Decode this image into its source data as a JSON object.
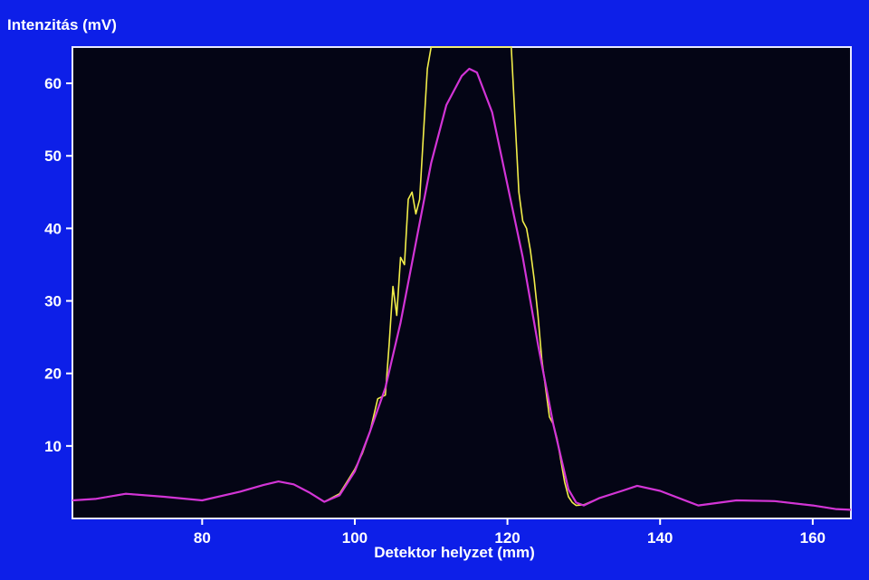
{
  "chart_data": {
    "type": "line",
    "ylabel": "Intenzitás (mV)",
    "xlabel": "Detektor helyzet (mm)",
    "xlim": [
      63,
      165
    ],
    "ylim": [
      0,
      65
    ],
    "x_ticks": [
      80,
      100,
      120,
      140,
      160
    ],
    "y_ticks": [
      10,
      20,
      30,
      40,
      50,
      60
    ],
    "grid": false,
    "colors": {
      "background": "#0d1fe8",
      "plot_area": "#040515",
      "frame": "#e8e8ff",
      "measured": "#f2ee4a",
      "model": "#d234d6",
      "text": "#ffffff"
    },
    "series": [
      {
        "style": "measured",
        "x": [
          63,
          66,
          70,
          75,
          80,
          85,
          88,
          90,
          92,
          94,
          96,
          98,
          100,
          101,
          102,
          103,
          104,
          104.5,
          105,
          105.5,
          106,
          106.5,
          107,
          107.5,
          108,
          108.5,
          109,
          109.5,
          110,
          110.5,
          111,
          120,
          120.5,
          121,
          121.5,
          122,
          122.5,
          123,
          123.5,
          124,
          124.5,
          125,
          125.5,
          126,
          126.5,
          127,
          127.5,
          128,
          128.5,
          129,
          130,
          132,
          135,
          137,
          140,
          145,
          150,
          155,
          160,
          163,
          165
        ],
        "y": [
          2.5,
          2.7,
          3.4,
          3,
          2.5,
          3.7,
          4.6,
          5.1,
          4.7,
          3.6,
          2.3,
          3.4,
          6.8,
          9,
          12,
          16.5,
          17,
          24,
          32,
          28,
          36,
          35,
          44,
          45,
          42,
          44,
          53,
          62,
          66,
          66,
          66,
          66,
          66,
          55,
          45,
          41,
          40,
          37,
          33,
          28,
          22,
          18,
          14,
          13,
          11,
          8,
          5,
          3,
          2.2,
          1.8,
          1.9,
          2.8,
          3.8,
          4.5,
          3.8,
          1.8,
          2.5,
          2.4,
          1.8,
          1.3,
          1.2
        ]
      },
      {
        "style": "model",
        "x": [
          63,
          66,
          70,
          75,
          80,
          85,
          88,
          90,
          92,
          94,
          96,
          98,
          100,
          102,
          104,
          106,
          108,
          110,
          112,
          114,
          115,
          116,
          118,
          120,
          122,
          124,
          126,
          128,
          129,
          130,
          132,
          135,
          137,
          140,
          145,
          150,
          155,
          160,
          163,
          165
        ],
        "y": [
          2.5,
          2.7,
          3.4,
          3,
          2.5,
          3.7,
          4.6,
          5.1,
          4.7,
          3.6,
          2.3,
          3.2,
          6.5,
          12,
          18,
          27,
          38,
          49,
          57,
          61,
          62,
          61.5,
          56,
          46,
          36,
          24,
          13,
          4,
          2.2,
          1.8,
          2.8,
          3.8,
          4.5,
          3.8,
          1.8,
          2.5,
          2.4,
          1.8,
          1.3,
          1.2
        ]
      }
    ]
  }
}
